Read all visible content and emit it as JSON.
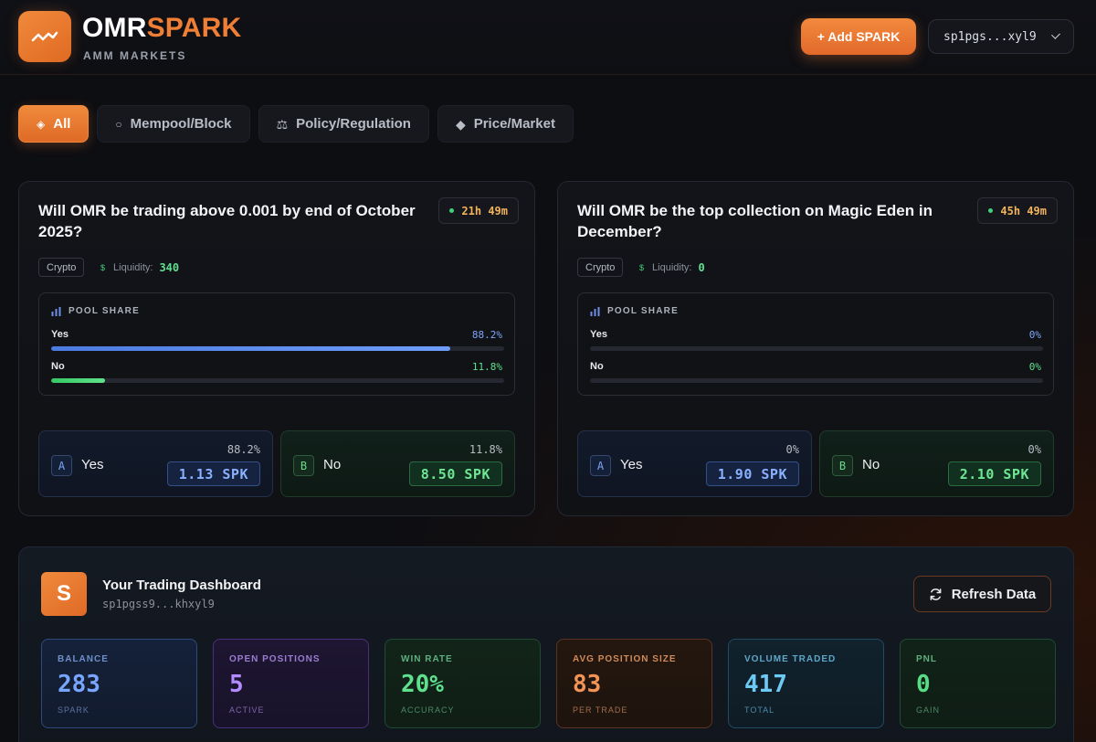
{
  "header": {
    "brand_part1": "OMR",
    "brand_part2": "SPARK",
    "subtitle": "AMM MARKETS",
    "add_button": "+ Add SPARK",
    "wallet": "sp1pgs...xyl9",
    "logo_icon": "trend-line-icon",
    "accent": "#f07f35"
  },
  "filters": [
    {
      "label": "All",
      "icon": "diamond-outline-icon",
      "active": true
    },
    {
      "label": "Mempool/Block",
      "icon": "circle-outline-icon",
      "active": false
    },
    {
      "label": "Policy/Regulation",
      "icon": "scales-icon",
      "active": false
    },
    {
      "label": "Price/Market",
      "icon": "diamond-icon",
      "active": false
    }
  ],
  "markets": [
    {
      "question": "Will OMR be trading above 0.001 by end of October 2025?",
      "timer": "21h 49m",
      "tag": "Crypto",
      "liquidity_label": "Liquidity:",
      "liquidity": "340",
      "pool_title": "POOL SHARE",
      "yes_label": "Yes",
      "yes_pct": "88.2%",
      "yes_share": 0.882,
      "no_label": "No",
      "no_pct": "11.8%",
      "no_share": 0.118,
      "opt_a": {
        "letter": "A",
        "name": "Yes",
        "pct": "88.2%",
        "price": "1.13 SPK"
      },
      "opt_b": {
        "letter": "B",
        "name": "No",
        "pct": "11.8%",
        "price": "8.50 SPK"
      }
    },
    {
      "question": "Will OMR be the top collection on Magic Eden in December?",
      "timer": "45h 49m",
      "tag": "Crypto",
      "liquidity_label": "Liquidity:",
      "liquidity": "0",
      "pool_title": "POOL SHARE",
      "yes_label": "Yes",
      "yes_pct": "0%",
      "yes_share": 0,
      "no_label": "No",
      "no_pct": "0%",
      "no_share": 0,
      "opt_a": {
        "letter": "A",
        "name": "Yes",
        "pct": "0%",
        "price": "1.90 SPK"
      },
      "opt_b": {
        "letter": "B",
        "name": "No",
        "pct": "0%",
        "price": "2.10 SPK"
      }
    }
  ],
  "dashboard": {
    "avatar": "S",
    "title": "Your Trading Dashboard",
    "address": "sp1pgss9...khxyl9",
    "refresh": "Refresh Data",
    "stats": [
      {
        "label": "BALANCE",
        "value": "283",
        "sub": "SPARK"
      },
      {
        "label": "OPEN POSITIONS",
        "value": "5",
        "sub": "ACTIVE"
      },
      {
        "label": "WIN RATE",
        "value": "20%",
        "sub": "ACCURACY"
      },
      {
        "label": "AVG POSITION SIZE",
        "value": "83",
        "sub": "PER TRADE"
      },
      {
        "label": "VOLUME TRADED",
        "value": "417",
        "sub": "TOTAL"
      },
      {
        "label": "PNL",
        "value": "0",
        "sub": "GAIN"
      }
    ]
  }
}
